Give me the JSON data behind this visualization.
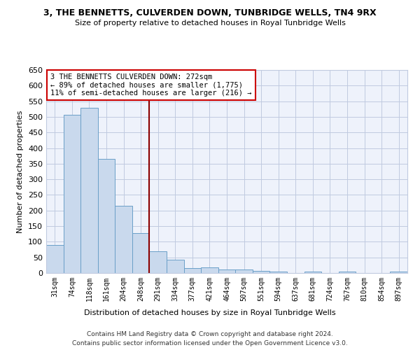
{
  "title1": "3, THE BENNETTS, CULVERDEN DOWN, TUNBRIDGE WELLS, TN4 9RX",
  "title2": "Size of property relative to detached houses in Royal Tunbridge Wells",
  "xlabel": "Distribution of detached houses by size in Royal Tunbridge Wells",
  "ylabel": "Number of detached properties",
  "footer1": "Contains HM Land Registry data © Crown copyright and database right 2024.",
  "footer2": "Contains public sector information licensed under the Open Government Licence v3.0.",
  "bar_labels": [
    "31sqm",
    "74sqm",
    "118sqm",
    "161sqm",
    "204sqm",
    "248sqm",
    "291sqm",
    "334sqm",
    "377sqm",
    "421sqm",
    "464sqm",
    "507sqm",
    "551sqm",
    "594sqm",
    "637sqm",
    "681sqm",
    "724sqm",
    "767sqm",
    "810sqm",
    "854sqm",
    "897sqm"
  ],
  "bar_values": [
    90,
    507,
    528,
    365,
    215,
    127,
    70,
    42,
    15,
    19,
    11,
    11,
    7,
    5,
    0,
    5,
    0,
    4,
    0,
    0,
    4
  ],
  "bar_color": "#c9d9ed",
  "bar_edgecolor": "#6a9fc8",
  "annotation_text": "3 THE BENNETTS CULVERDEN DOWN: 272sqm\n← 89% of detached houses are smaller (1,775)\n11% of semi-detached houses are larger (216) →",
  "vline_x": 5.5,
  "vline_color": "#8b0000",
  "annotation_box_edgecolor": "#cc0000",
  "background_color": "#eef2fb",
  "grid_color": "#c0cae0",
  "ylim": [
    0,
    650
  ],
  "yticks": [
    0,
    50,
    100,
    150,
    200,
    250,
    300,
    350,
    400,
    450,
    500,
    550,
    600,
    650
  ]
}
